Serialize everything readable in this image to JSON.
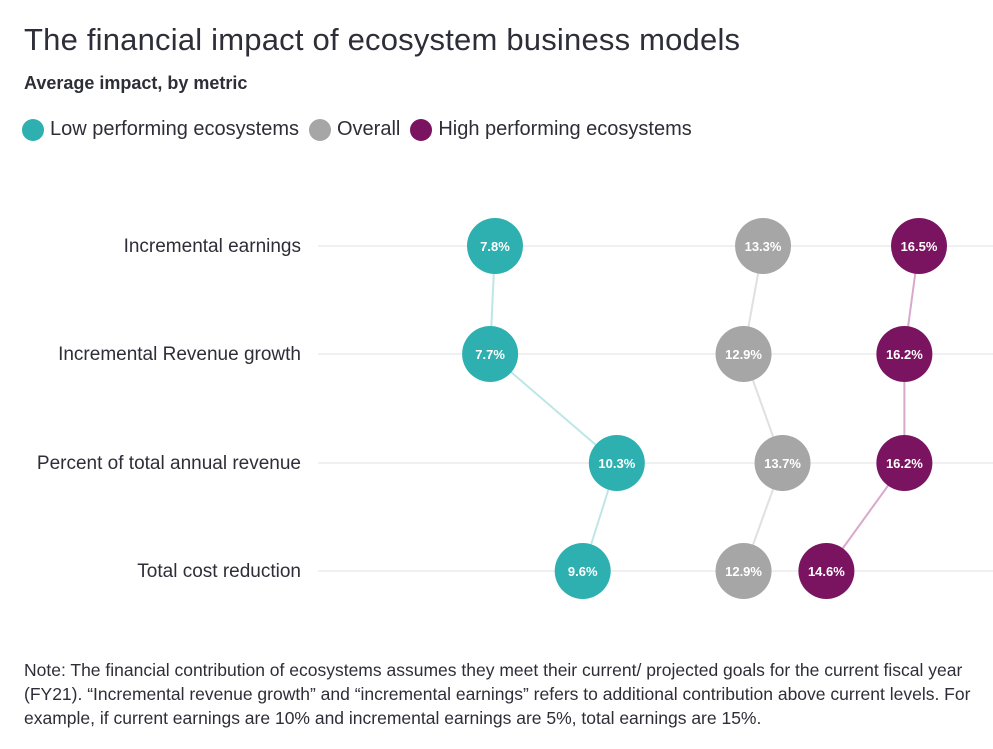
{
  "title": "The financial impact of ecosystem business models",
  "subtitle": "Average impact, by metric",
  "chart_data": {
    "type": "dot-plot",
    "categories": [
      "Incremental earnings",
      "Incremental Revenue growth",
      "Percent of total annual revenue",
      "Total cost reduction"
    ],
    "series": [
      {
        "name": "Low performing ecosystems",
        "color": "#2eb0b0",
        "values": [
          7.8,
          7.7,
          10.3,
          9.6
        ],
        "labels": [
          "7.8%",
          "7.7%",
          "10.3%",
          "9.6%"
        ]
      },
      {
        "name": "Overall",
        "color": "#a6a6a6",
        "values": [
          13.3,
          12.9,
          13.7,
          12.9
        ],
        "labels": [
          "13.3%",
          "12.9%",
          "13.7%",
          "12.9%"
        ]
      },
      {
        "name": "High performing ecosystems",
        "color": "#7a1461",
        "values": [
          16.5,
          16.2,
          16.2,
          14.6
        ],
        "labels": [
          "16.5%",
          "16.2%",
          "16.2%",
          "14.6%"
        ]
      }
    ],
    "xlim": [
      7.0,
      16.5
    ],
    "gridlines": true,
    "legend_position": "top-left"
  },
  "note": "Note: The financial contribution of ecosystems assumes they meet their current/ projected goals for the current fiscal year (FY21). “Incremental revenue growth” and “incremental earnings” refers to additional contribution above current levels. For example, if current earnings are 10% and incremental earnings are 5%, total earnings are 15%."
}
